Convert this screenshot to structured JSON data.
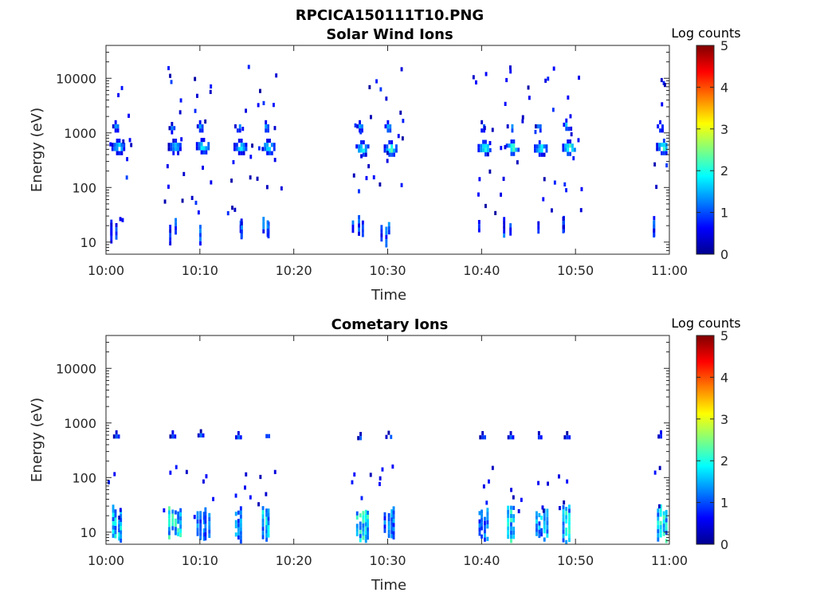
{
  "figure": {
    "title": "RPCICA150111T10.PNG"
  },
  "chart_data": [
    {
      "type": "heatmap",
      "title": "Solar Wind Ions",
      "xlabel": "Time",
      "ylabel": "Energy (eV)",
      "xlim": [
        "10:00",
        "11:00"
      ],
      "x_ticks": [
        "10:00",
        "10:10",
        "10:20",
        "10:30",
        "10:40",
        "10:50",
        "11:00"
      ],
      "y_scale": "log",
      "ylim": [
        6,
        40000
      ],
      "y_ticks": [
        "10",
        "100",
        "1000",
        "10000"
      ],
      "colorbar": {
        "label": "Log counts",
        "min": 0,
        "max": 5,
        "ticks": [
          "0",
          "1",
          "2",
          "3",
          "4",
          "5"
        ],
        "colormap": "jet"
      },
      "grid": false,
      "bursts": [
        {
          "time": "10:01",
          "e_main": 600,
          "e_secondary": 1400,
          "e_low": 13,
          "peak": 2.0
        },
        {
          "time": "10:07",
          "e_main": 600,
          "e_secondary": 1300,
          "e_low": 12,
          "peak": 1.9
        },
        {
          "time": "10:10",
          "e_main": 620,
          "e_secondary": 1400,
          "e_low": 11,
          "peak": 2.2
        },
        {
          "time": "10:14",
          "e_main": 600,
          "e_secondary": 1400,
          "e_low": 12,
          "peak": 2.0
        },
        {
          "time": "10:17",
          "e_main": 600,
          "e_secondary": 1400,
          "e_low": 12,
          "peak": 2.3
        },
        {
          "time": "10:27",
          "e_main": 560,
          "e_secondary": 1400,
          "e_low": 13,
          "peak": 2.4
        },
        {
          "time": "10:30",
          "e_main": 560,
          "e_secondary": 1400,
          "e_low": 11,
          "peak": 2.5
        },
        {
          "time": "10:40",
          "e_main": 570,
          "e_secondary": 1400,
          "e_low": 11,
          "peak": 2.3
        },
        {
          "time": "10:43",
          "e_main": 580,
          "e_secondary": 1400,
          "e_low": 12,
          "peak": 2.6
        },
        {
          "time": "10:46",
          "e_main": 560,
          "e_secondary": 1400,
          "e_low": 11,
          "peak": 2.2
        },
        {
          "time": "10:49",
          "e_main": 580,
          "e_secondary": 1500,
          "e_low": 12,
          "peak": 2.6
        },
        {
          "time": "10:59",
          "e_main": 600,
          "e_secondary": 1400,
          "e_low": 14,
          "peak": 2.4
        }
      ]
    },
    {
      "type": "heatmap",
      "title": "Cometary Ions",
      "xlabel": "Time",
      "ylabel": "Energy (eV)",
      "xlim": [
        "10:00",
        "11:00"
      ],
      "x_ticks": [
        "10:00",
        "10:10",
        "10:20",
        "10:30",
        "10:40",
        "10:50",
        "11:00"
      ],
      "y_scale": "log",
      "ylim": [
        6,
        40000
      ],
      "y_ticks": [
        "10",
        "100",
        "1000",
        "10000"
      ],
      "colorbar": {
        "label": "Log counts",
        "min": 0,
        "max": 5,
        "ticks": [
          "0",
          "1",
          "2",
          "3",
          "4",
          "5"
        ],
        "colormap": "jet"
      },
      "grid": false,
      "bursts": [
        {
          "time": "10:01",
          "e_main": 620,
          "e_low": 14,
          "peak": 2.0
        },
        {
          "time": "10:07",
          "e_main": 620,
          "e_low": 14,
          "peak": 2.3
        },
        {
          "time": "10:10",
          "e_main": 650,
          "e_low": 13,
          "peak": 1.5
        },
        {
          "time": "10:14",
          "e_main": 600,
          "e_low": 13,
          "peak": 1.6
        },
        {
          "time": "10:17",
          "e_main": 630,
          "e_low": 14,
          "peak": 2.0
        },
        {
          "time": "10:27",
          "e_main": 580,
          "e_low": 13,
          "peak": 2.2
        },
        {
          "time": "10:30",
          "e_main": 610,
          "e_low": 13,
          "peak": 1.5
        },
        {
          "time": "10:40",
          "e_main": 600,
          "e_low": 13,
          "peak": 1.5
        },
        {
          "time": "10:43",
          "e_main": 600,
          "e_low": 14,
          "peak": 2.2
        },
        {
          "time": "10:46",
          "e_main": 600,
          "e_low": 13,
          "peak": 1.8
        },
        {
          "time": "10:49",
          "e_main": 600,
          "e_low": 14,
          "peak": 2.1
        },
        {
          "time": "10:59",
          "e_main": 620,
          "e_low": 15,
          "peak": 2.2
        }
      ]
    }
  ]
}
